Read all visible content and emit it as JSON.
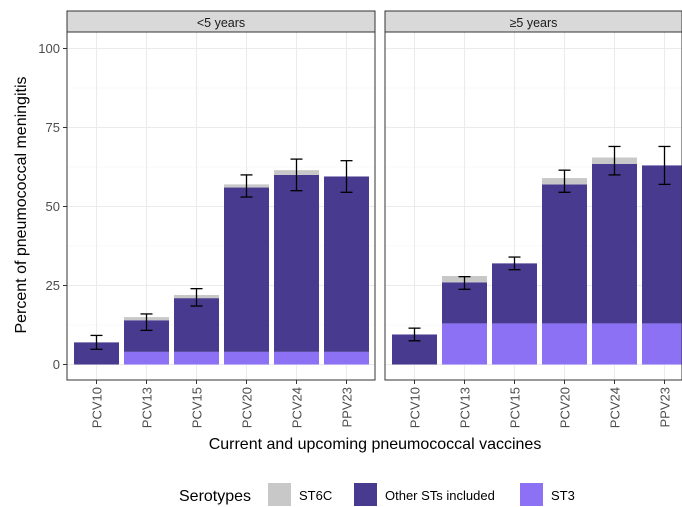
{
  "chart_data": {
    "type": "bar",
    "stacked": true,
    "error_bars": true,
    "xlabel": "Current and upcoming pneumococcal vaccines",
    "ylabel": "Percent of pneumococcal meningitis",
    "ylim": [
      0,
      100
    ],
    "yticks": [
      0,
      25,
      50,
      75,
      100
    ],
    "grid": true,
    "categories": [
      "PCV10",
      "PCV13",
      "PCV15",
      "PCV20",
      "PCV24",
      "PPV23"
    ],
    "colors": {
      "ST6C": "#c8c8c8",
      "Other STs included": "#483a8f",
      "ST3": "#8d71f4"
    },
    "legend": {
      "title": "Serotypes",
      "position": "bottom",
      "items": [
        "ST6C",
        "Other STs included",
        "ST3"
      ]
    },
    "panels": [
      {
        "label": "<5 years",
        "series": [
          {
            "name": "ST3",
            "values": [
              0,
              4,
              4,
              4,
              4,
              4
            ]
          },
          {
            "name": "Other STs included",
            "values": [
              7,
              10,
              17,
              52,
              56,
              55.5
            ]
          },
          {
            "name": "ST6C",
            "values": [
              0,
              1,
              1,
              1,
              1.5,
              0
            ]
          }
        ],
        "ci_low": [
          4.8,
          10.8,
          18.5,
          53,
          55,
          54.5
        ],
        "ci_high": [
          9.2,
          16,
          24,
          60,
          65,
          64.5
        ]
      },
      {
        "label": "≥5 years",
        "series": [
          {
            "name": "ST3",
            "values": [
              0,
              13,
              13,
              13,
              13,
              13
            ]
          },
          {
            "name": "Other STs included",
            "values": [
              9.5,
              13,
              19,
              44,
              50.5,
              50
            ]
          },
          {
            "name": "ST6C",
            "values": [
              0,
              2,
              0,
              2,
              2,
              0
            ]
          }
        ],
        "ci_low": [
          7.5,
          23.8,
          30,
          54.5,
          60,
          57
        ],
        "ci_high": [
          11.5,
          27.8,
          34,
          61.5,
          69,
          69
        ]
      }
    ]
  }
}
